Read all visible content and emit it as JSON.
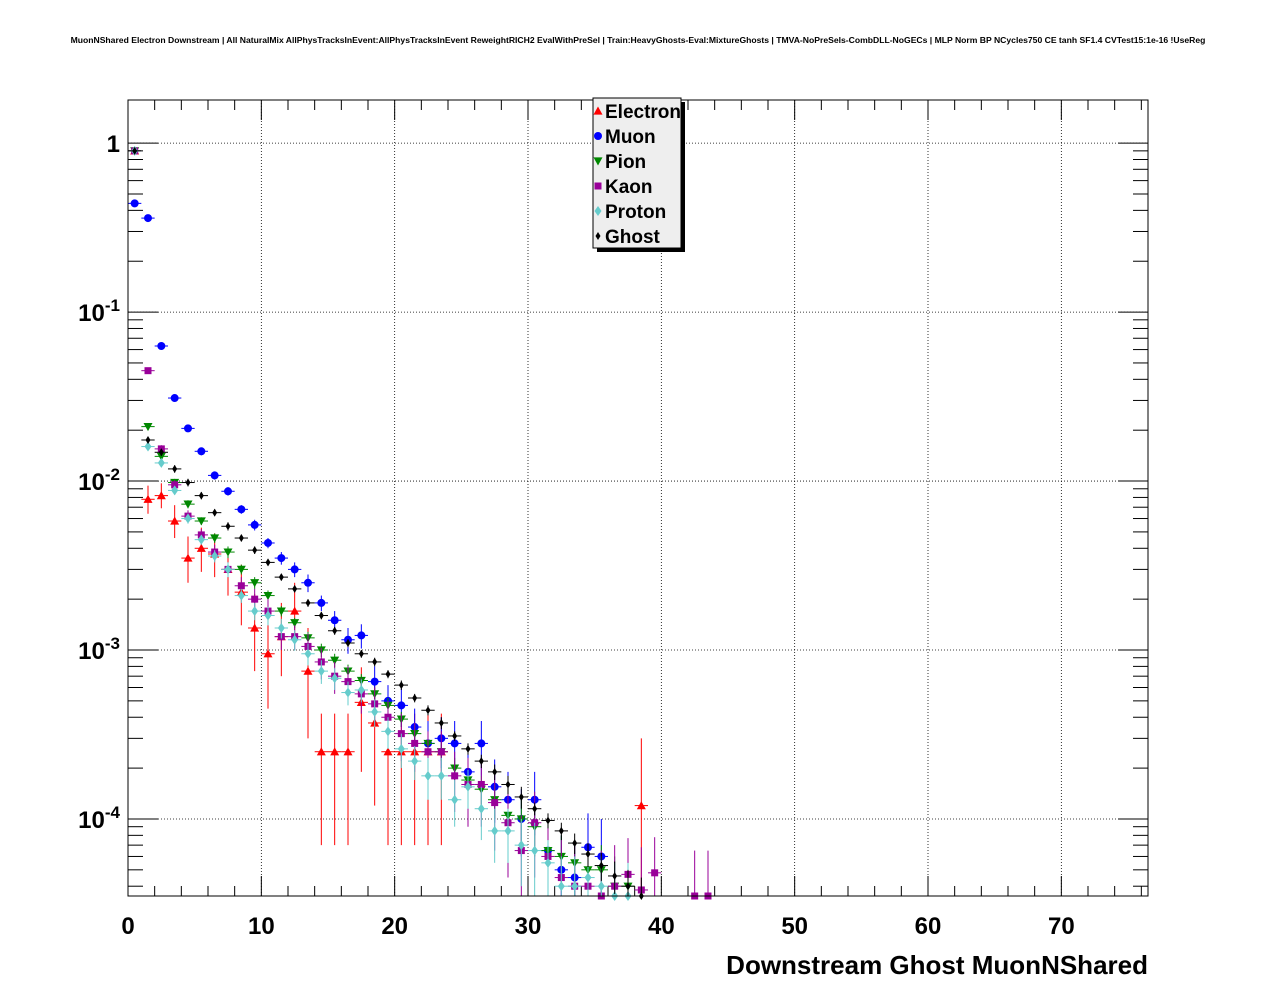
{
  "chart_data": {
    "type": "scatter",
    "title": "MuonNShared Electron Downstream | All NaturalMix AllPhysTracksInEvent:AllPhysTracksInEvent ReweightRICH2 EvalWithPreSel | Train:HeavyGhosts-Eval:MixtureGhosts | TMVA-NoPreSels-CombDLL-NoGECs | MLP Norm BP NCycles750 CE tanh SF1.4 CVTest15:1e-16 !UseReg",
    "xlabel": "Downstream Ghost MuonNShared",
    "ylabel": "",
    "xlim": [
      0,
      76.5
    ],
    "ylim": [
      3.5e-05,
      1.8
    ],
    "yscale": "log",
    "grid": true,
    "legend_position": "top-center",
    "x_ticks": [
      0,
      10,
      20,
      30,
      40,
      50,
      60,
      70
    ],
    "x_tick_labels": [
      "0",
      "10",
      "20",
      "30",
      "40",
      "50",
      "60",
      "70"
    ],
    "y_ticks": [
      0.0001,
      0.001,
      0.01,
      0.1,
      1
    ],
    "y_tick_labels": [
      {
        "base": "10",
        "exp": "-4"
      },
      {
        "base": "10",
        "exp": "-3"
      },
      {
        "base": "10",
        "exp": "-2"
      },
      {
        "base": "10",
        "exp": "-1"
      },
      {
        "base": "1",
        "exp": ""
      }
    ],
    "series": [
      {
        "name": "Electron",
        "color": "#ff0000",
        "marker": "triangle-up",
        "x": [
          0,
          1,
          2,
          3,
          4,
          5,
          6,
          7,
          8,
          9,
          10,
          11,
          12,
          13,
          14,
          15,
          16,
          17,
          18,
          19,
          20,
          21,
          22,
          23,
          38
        ],
        "y": [
          0.9,
          0.0078,
          0.0082,
          0.0058,
          0.0035,
          0.004,
          0.0037,
          0.003,
          0.0022,
          0.00135,
          0.00095,
          0.0012,
          0.0017,
          0.00075,
          0.00025,
          0.00025,
          0.00025,
          0.00049,
          0.00037,
          0.00025,
          0.00025,
          0.00025,
          0.00025,
          0.00025,
          0.00012
        ],
        "err_lo": [
          0.02,
          0.0014,
          0.0013,
          0.0012,
          0.001,
          0.0011,
          0.001,
          0.0009,
          0.0008,
          0.0006,
          0.0005,
          0.0005,
          0.0006,
          0.00045,
          0.00018,
          0.00018,
          0.00018,
          0.0003,
          0.00025,
          0.00018,
          0.00018,
          0.00018,
          0.00018,
          0.00018,
          9e-05
        ],
        "err_hi": [
          0.02,
          0.0016,
          0.0015,
          0.0014,
          0.0012,
          0.0013,
          0.0012,
          0.0011,
          0.001,
          0.0008,
          0.0007,
          0.0007,
          0.0008,
          0.0006,
          0.00017,
          0.00017,
          0.00017,
          0.0003,
          0.00025,
          0.00017,
          0.00017,
          0.00017,
          0.00017,
          0.00017,
          0.00018
        ]
      },
      {
        "name": "Muon",
        "color": "#0000ff",
        "marker": "circle",
        "x": [
          0,
          1,
          2,
          3,
          4,
          5,
          6,
          7,
          8,
          9,
          10,
          11,
          12,
          13,
          14,
          15,
          16,
          17,
          18,
          19,
          20,
          21,
          22,
          23,
          24,
          25,
          26,
          27,
          28,
          29,
          30,
          31,
          32,
          33,
          34,
          35
        ],
        "y": [
          0.44,
          0.36,
          0.063,
          0.031,
          0.0205,
          0.015,
          0.0108,
          0.0087,
          0.0068,
          0.0055,
          0.0043,
          0.0035,
          0.003,
          0.0025,
          0.0019,
          0.0015,
          0.00115,
          0.00122,
          0.00065,
          0.0005,
          0.00047,
          0.00035,
          0.00028,
          0.0003,
          0.00028,
          0.00019,
          0.00028,
          0.000155,
          0.00013,
          0.0001,
          0.00013,
          6.5e-05,
          5e-05,
          4.5e-05,
          6.8e-05,
          6e-05
        ],
        "err_lo": [
          0.01,
          0.01,
          0.003,
          0.0015,
          0.001,
          0.0008,
          0.0006,
          0.0005,
          0.0004,
          0.0004,
          0.0003,
          0.0003,
          0.0003,
          0.0003,
          0.0002,
          0.0002,
          0.0002,
          0.0002,
          0.00015,
          0.00012,
          0.00012,
          0.0001,
          0.0001,
          0.0001,
          0.0001,
          7e-05,
          0.0001,
          6e-05,
          5e-05,
          4e-05,
          5e-05,
          2.5e-05,
          2e-05,
          2e-05,
          2.5e-05,
          2.5e-05
        ],
        "err_hi": [
          0.01,
          0.01,
          0.003,
          0.0015,
          0.001,
          0.0008,
          0.0006,
          0.0005,
          0.0004,
          0.0004,
          0.0003,
          0.0003,
          0.0003,
          0.0003,
          0.0002,
          0.0002,
          0.0002,
          0.0002,
          0.00015,
          0.00012,
          0.00012,
          0.0001,
          0.0001,
          0.0001,
          0.0001,
          8e-05,
          0.0001,
          7e-05,
          6e-05,
          5e-05,
          6e-05,
          4e-05,
          3e-05,
          3e-05,
          4e-05,
          4e-05
        ]
      },
      {
        "name": "Pion",
        "color": "#008800",
        "marker": "triangle-down",
        "x": [
          0,
          1,
          2,
          3,
          4,
          5,
          6,
          7,
          8,
          9,
          10,
          11,
          12,
          13,
          14,
          15,
          16,
          17,
          18,
          19,
          20,
          21,
          22,
          23,
          24,
          25,
          26,
          27,
          28,
          29,
          30,
          31,
          32,
          33,
          34,
          35,
          36,
          37
        ],
        "y": [
          0.9,
          0.021,
          0.014,
          0.0098,
          0.0073,
          0.0058,
          0.0046,
          0.0038,
          0.003,
          0.0025,
          0.0021,
          0.0017,
          0.00145,
          0.00118,
          0.001,
          0.00087,
          0.00075,
          0.00066,
          0.00055,
          0.00047,
          0.00039,
          0.00032,
          0.00028,
          0.00025,
          0.0002,
          0.00017,
          0.00015,
          0.00013,
          0.000105,
          0.0001,
          9e-05,
          6.5e-05,
          6e-05,
          5.5e-05,
          5e-05,
          5e-05,
          4e-05,
          4e-05
        ],
        "err_lo": [
          0.02,
          0.001,
          0.0007,
          0.0005,
          0.0004,
          0.0003,
          0.0003,
          0.0003,
          0.0002,
          0.0002,
          0.00015,
          0.00012,
          0.0001,
          0.0001,
          9e-05,
          8e-05,
          7e-05,
          6e-05,
          5e-05,
          5e-05,
          4e-05,
          4e-05,
          3e-05,
          3e-05,
          3e-05,
          3e-05,
          3e-05,
          3e-05,
          3e-05,
          3e-05,
          3e-05,
          2e-05,
          2e-05,
          2e-05,
          2e-05,
          2e-05,
          2e-05,
          2e-05
        ],
        "err_hi": [
          0.02,
          0.001,
          0.0007,
          0.0005,
          0.0004,
          0.0003,
          0.0003,
          0.0003,
          0.0002,
          0.0002,
          0.00015,
          0.00012,
          0.0001,
          0.0001,
          9e-05,
          8e-05,
          7e-05,
          6e-05,
          5e-05,
          5e-05,
          4e-05,
          4e-05,
          3e-05,
          3e-05,
          3e-05,
          3e-05,
          3e-05,
          3e-05,
          3e-05,
          3e-05,
          3e-05,
          2e-05,
          2e-05,
          2e-05,
          2e-05,
          2e-05,
          2e-05,
          2e-05
        ]
      },
      {
        "name": "Kaon",
        "color": "#990099",
        "marker": "square",
        "x": [
          0,
          1,
          2,
          3,
          4,
          5,
          6,
          7,
          8,
          9,
          10,
          11,
          12,
          13,
          14,
          15,
          16,
          17,
          18,
          19,
          20,
          21,
          22,
          23,
          24,
          25,
          26,
          27,
          28,
          29,
          30,
          31,
          32,
          33,
          34,
          35,
          36,
          37,
          38,
          39,
          42,
          43
        ],
        "y": [
          0.9,
          0.045,
          0.0155,
          0.0095,
          0.0062,
          0.0048,
          0.0038,
          0.003,
          0.0024,
          0.002,
          0.0017,
          0.0012,
          0.0012,
          0.00105,
          0.00085,
          0.0007,
          0.00065,
          0.00055,
          0.00048,
          0.0004,
          0.00032,
          0.00028,
          0.00025,
          0.00025,
          0.00018,
          0.00016,
          0.00016,
          0.000125,
          9.5e-05,
          6.5e-05,
          9.5e-05,
          6e-05,
          4.5e-05,
          4e-05,
          4e-05,
          3.5e-05,
          4e-05,
          4.7e-05,
          3.8e-05,
          4.8e-05,
          3.5e-05,
          3.5e-05
        ],
        "err_lo": [
          0.02,
          0.002,
          0.0008,
          0.0006,
          0.0005,
          0.0004,
          0.0004,
          0.0003,
          0.0003,
          0.0003,
          0.0003,
          0.0002,
          0.0002,
          0.0002,
          0.00018,
          0.00015,
          0.00015,
          0.00013,
          0.00012,
          0.0001,
          0.0001,
          9e-05,
          8e-05,
          8e-05,
          7e-05,
          7e-05,
          7e-05,
          6e-05,
          5e-05,
          4e-05,
          5e-05,
          4e-05,
          3e-05,
          3e-05,
          3e-05,
          2e-05,
          3e-05,
          3e-05,
          3e-05,
          3e-05,
          2e-05,
          2e-05
        ],
        "err_hi": [
          0.02,
          0.002,
          0.0008,
          0.0006,
          0.0005,
          0.0004,
          0.0004,
          0.0003,
          0.0003,
          0.0003,
          0.0003,
          0.0002,
          0.0002,
          0.0002,
          0.00018,
          0.00015,
          0.00015,
          0.00013,
          0.00012,
          0.0001,
          0.0001,
          9e-05,
          8e-05,
          8e-05,
          7e-05,
          7e-05,
          7e-05,
          6e-05,
          5e-05,
          4e-05,
          5e-05,
          4e-05,
          3e-05,
          3e-05,
          3e-05,
          3e-05,
          3e-05,
          3e-05,
          3e-05,
          3e-05,
          3e-05,
          3e-05
        ]
      },
      {
        "name": "Proton",
        "color": "#66cccc",
        "marker": "diamond",
        "x": [
          0,
          1,
          2,
          3,
          4,
          5,
          6,
          7,
          8,
          9,
          10,
          11,
          12,
          13,
          14,
          15,
          16,
          17,
          18,
          19,
          20,
          21,
          22,
          23,
          24,
          25,
          26,
          27,
          28,
          29,
          30,
          31,
          32,
          33,
          34,
          35,
          36,
          37
        ],
        "y": [
          0.9,
          0.016,
          0.0128,
          0.0088,
          0.006,
          0.0045,
          0.0036,
          0.003,
          0.0021,
          0.0017,
          0.0016,
          0.00135,
          0.00115,
          0.00095,
          0.00075,
          0.00068,
          0.00056,
          0.00058,
          0.00043,
          0.00033,
          0.00026,
          0.00022,
          0.00018,
          0.00018,
          0.00013,
          0.000155,
          0.000115,
          8.5e-05,
          8.5e-05,
          7e-05,
          6.5e-05,
          5.5e-05,
          4e-05,
          4e-05,
          4.5e-05,
          4e-05,
          3.5e-05,
          3.5e-05
        ],
        "err_lo": [
          0.02,
          0.0008,
          0.0007,
          0.0005,
          0.0004,
          0.0003,
          0.0003,
          0.0003,
          0.0002,
          0.0002,
          0.0002,
          0.00018,
          0.00016,
          0.00014,
          0.00012,
          0.0001,
          9e-05,
          9e-05,
          8e-05,
          7e-05,
          6e-05,
          5e-05,
          5e-05,
          5e-05,
          4e-05,
          4e-05,
          4e-05,
          3e-05,
          3e-05,
          3e-05,
          3e-05,
          2e-05,
          2e-05,
          2e-05,
          2e-05,
          2e-05,
          2e-05,
          2e-05
        ],
        "err_hi": [
          0.02,
          0.0008,
          0.0007,
          0.0005,
          0.0004,
          0.0003,
          0.0003,
          0.0003,
          0.0002,
          0.0002,
          0.0002,
          0.00018,
          0.00016,
          0.00014,
          0.00012,
          0.0001,
          9e-05,
          9e-05,
          8e-05,
          7e-05,
          6e-05,
          5e-05,
          5e-05,
          5e-05,
          4e-05,
          4e-05,
          4e-05,
          3e-05,
          3e-05,
          3e-05,
          3e-05,
          2e-05,
          2e-05,
          2e-05,
          2e-05,
          2e-05,
          2e-05,
          2e-05
        ]
      },
      {
        "name": "Ghost",
        "color": "#000000",
        "marker": "star",
        "x": [
          0,
          1,
          2,
          3,
          4,
          5,
          6,
          7,
          8,
          9,
          10,
          11,
          12,
          13,
          14,
          15,
          16,
          17,
          18,
          19,
          20,
          21,
          22,
          23,
          24,
          25,
          26,
          27,
          28,
          29,
          30,
          31,
          32,
          33,
          34,
          35,
          36,
          37,
          38
        ],
        "y": [
          0.9,
          0.0175,
          0.0148,
          0.0118,
          0.0098,
          0.0082,
          0.0065,
          0.0054,
          0.0046,
          0.0039,
          0.0033,
          0.0027,
          0.0023,
          0.0019,
          0.0016,
          0.0013,
          0.0011,
          0.00095,
          0.00085,
          0.00072,
          0.00062,
          0.00052,
          0.00044,
          0.00037,
          0.00031,
          0.00026,
          0.00022,
          0.00019,
          0.00016,
          0.000135,
          0.000115,
          9.8e-05,
          8.5e-05,
          7.2e-05,
          6.2e-05,
          5.3e-05,
          4.6e-05,
          4e-05,
          3.5e-05
        ],
        "err_lo": [
          0.02,
          0.0008,
          0.0007,
          0.0006,
          0.0005,
          0.0004,
          0.0003,
          0.0003,
          0.0002,
          0.0002,
          0.00015,
          0.00012,
          0.0001,
          0.0001,
          8e-05,
          7e-05,
          6e-05,
          5e-05,
          5e-05,
          4e-05,
          4e-05,
          3e-05,
          3e-05,
          3e-05,
          2e-05,
          2e-05,
          2e-05,
          2e-05,
          2e-05,
          2e-05,
          1e-05,
          1e-05,
          1e-05,
          1e-05,
          1e-05,
          1e-05,
          1e-05,
          1e-05,
          1e-05
        ],
        "err_hi": [
          0.02,
          0.0008,
          0.0007,
          0.0006,
          0.0005,
          0.0004,
          0.0003,
          0.0003,
          0.0002,
          0.0002,
          0.00015,
          0.00012,
          0.0001,
          0.0001,
          8e-05,
          7e-05,
          6e-05,
          5e-05,
          5e-05,
          4e-05,
          4e-05,
          3e-05,
          3e-05,
          3e-05,
          2e-05,
          2e-05,
          2e-05,
          2e-05,
          2e-05,
          2e-05,
          1e-05,
          1e-05,
          1e-05,
          1e-05,
          1e-05,
          1e-05,
          1e-05,
          1e-05,
          1e-05
        ]
      }
    ]
  }
}
